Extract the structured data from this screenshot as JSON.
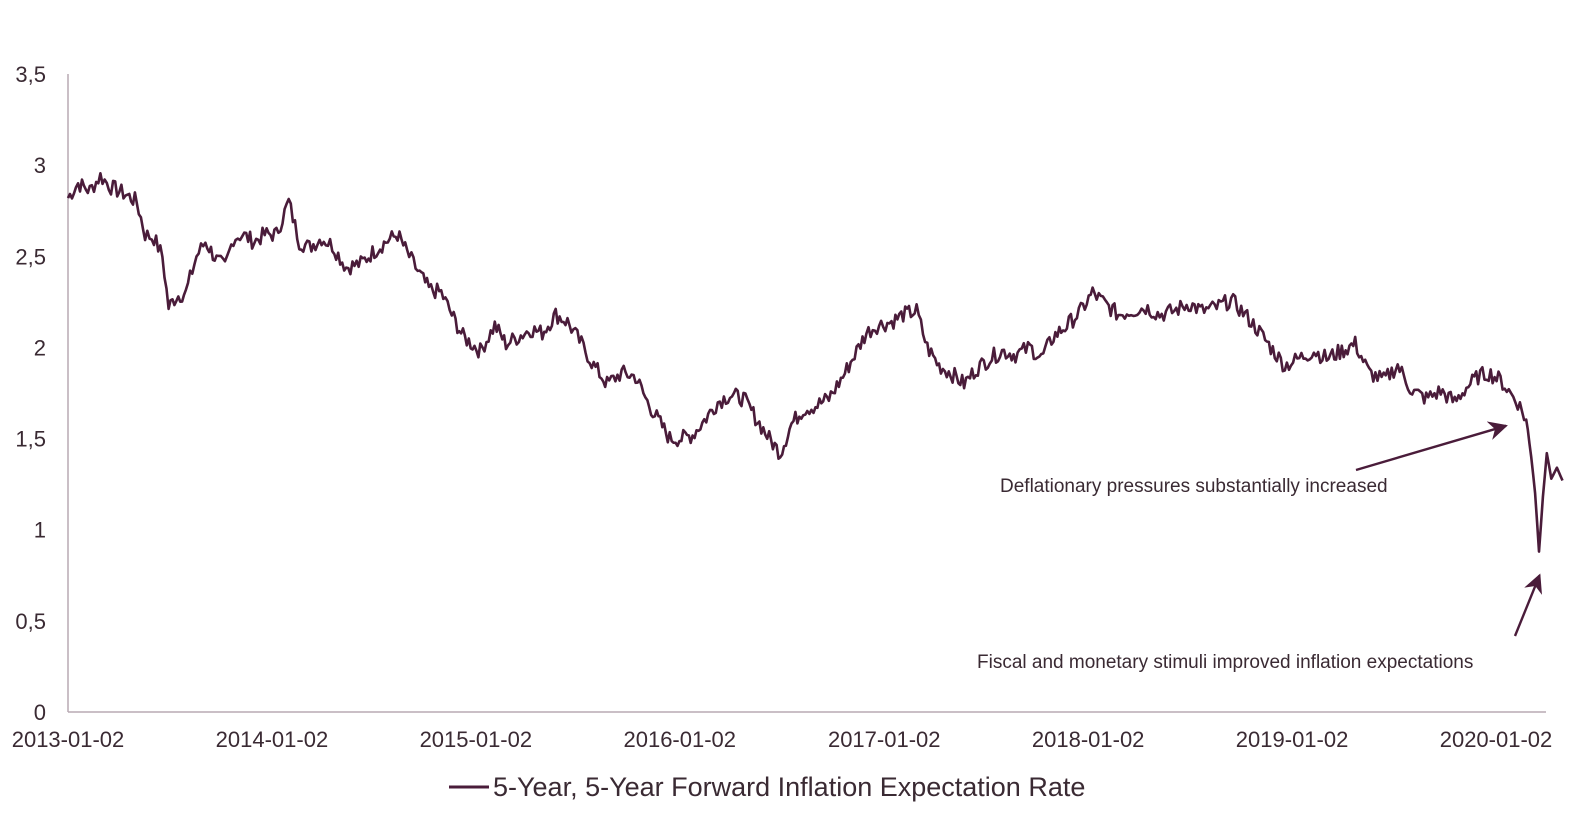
{
  "colors": {
    "series": "#4a1c3a",
    "axis": "#b8aab3",
    "text": "#3a2a33"
  },
  "chart_data": {
    "type": "line",
    "title": "",
    "xlabel": "",
    "ylabel": "",
    "ylim": [
      0,
      3.5
    ],
    "yticks": [
      "0",
      "0,5",
      "1",
      "1,5",
      "2",
      "2,5",
      "3",
      "3,5"
    ],
    "xlim": [
      "2013-01-02",
      "2020-04-30"
    ],
    "xticks": [
      "2013-01-02",
      "2014-01-02",
      "2015-01-02",
      "2016-01-02",
      "2017-01-02",
      "2018-01-02",
      "2019-01-02",
      "2020-01-02"
    ],
    "grid": false,
    "legend": {
      "placement": "bottom-center"
    },
    "series": [
      {
        "name": "5-Year, 5-Year Forward Inflation Expectation Rate",
        "points": [
          [
            "2013-01-02",
            2.82
          ],
          [
            "2013-01-20",
            2.9
          ],
          [
            "2013-02-10",
            2.86
          ],
          [
            "2013-03-01",
            2.94
          ],
          [
            "2013-03-20",
            2.88
          ],
          [
            "2013-04-15",
            2.84
          ],
          [
            "2013-05-05",
            2.8
          ],
          [
            "2013-05-20",
            2.62
          ],
          [
            "2013-06-05",
            2.6
          ],
          [
            "2013-06-20",
            2.5
          ],
          [
            "2013-07-01",
            2.22
          ],
          [
            "2013-07-15",
            2.28
          ],
          [
            "2013-08-01",
            2.3
          ],
          [
            "2013-08-20",
            2.5
          ],
          [
            "2013-09-05",
            2.58
          ],
          [
            "2013-09-25",
            2.48
          ],
          [
            "2013-10-10",
            2.44
          ],
          [
            "2013-10-25",
            2.6
          ],
          [
            "2013-11-10",
            2.62
          ],
          [
            "2013-12-01",
            2.58
          ],
          [
            "2013-12-20",
            2.62
          ],
          [
            "2014-01-10",
            2.62
          ],
          [
            "2014-02-01",
            2.8
          ],
          [
            "2014-02-20",
            2.58
          ],
          [
            "2014-03-10",
            2.55
          ],
          [
            "2014-04-01",
            2.6
          ],
          [
            "2014-04-20",
            2.56
          ],
          [
            "2014-05-15",
            2.44
          ],
          [
            "2014-06-10",
            2.46
          ],
          [
            "2014-07-01",
            2.52
          ],
          [
            "2014-07-25",
            2.58
          ],
          [
            "2014-08-15",
            2.62
          ],
          [
            "2014-09-01",
            2.52
          ],
          [
            "2014-09-20",
            2.42
          ],
          [
            "2014-10-10",
            2.32
          ],
          [
            "2014-11-01",
            2.3
          ],
          [
            "2014-11-20",
            2.18
          ],
          [
            "2014-12-10",
            2.06
          ],
          [
            "2015-01-10",
            1.98
          ],
          [
            "2015-02-05",
            2.12
          ],
          [
            "2015-02-25",
            2.02
          ],
          [
            "2015-03-20",
            2.06
          ],
          [
            "2015-04-10",
            2.1
          ],
          [
            "2015-05-01",
            2.08
          ],
          [
            "2015-05-25",
            2.18
          ],
          [
            "2015-06-15",
            2.14
          ],
          [
            "2015-07-10",
            2.02
          ],
          [
            "2015-08-01",
            1.9
          ],
          [
            "2015-08-25",
            1.8
          ],
          [
            "2015-09-20",
            1.86
          ],
          [
            "2015-10-15",
            1.84
          ],
          [
            "2015-11-05",
            1.7
          ],
          [
            "2015-11-25",
            1.6
          ],
          [
            "2015-12-15",
            1.5
          ],
          [
            "2016-01-05",
            1.5
          ],
          [
            "2016-01-25",
            1.52
          ],
          [
            "2016-02-15",
            1.6
          ],
          [
            "2016-03-10",
            1.7
          ],
          [
            "2016-04-01",
            1.74
          ],
          [
            "2016-04-25",
            1.72
          ],
          [
            "2016-05-20",
            1.6
          ],
          [
            "2016-06-10",
            1.5
          ],
          [
            "2016-06-30",
            1.42
          ],
          [
            "2016-07-20",
            1.58
          ],
          [
            "2016-08-10",
            1.66
          ],
          [
            "2016-09-01",
            1.68
          ],
          [
            "2016-09-25",
            1.72
          ],
          [
            "2016-10-20",
            1.84
          ],
          [
            "2016-11-10",
            1.96
          ],
          [
            "2016-12-01",
            2.08
          ],
          [
            "2016-12-20",
            2.12
          ],
          [
            "2017-01-15",
            2.14
          ],
          [
            "2017-02-05",
            2.18
          ],
          [
            "2017-03-01",
            2.2
          ],
          [
            "2017-03-20",
            2.0
          ],
          [
            "2017-04-10",
            1.9
          ],
          [
            "2017-05-01",
            1.86
          ],
          [
            "2017-05-25",
            1.8
          ],
          [
            "2017-06-15",
            1.88
          ],
          [
            "2017-07-10",
            1.94
          ],
          [
            "2017-08-01",
            1.98
          ],
          [
            "2017-08-25",
            1.96
          ],
          [
            "2017-09-20",
            2.0
          ],
          [
            "2017-10-10",
            1.94
          ],
          [
            "2017-11-01",
            2.06
          ],
          [
            "2017-11-25",
            2.12
          ],
          [
            "2017-12-20",
            2.2
          ],
          [
            "2018-01-10",
            2.3
          ],
          [
            "2018-02-01",
            2.24
          ],
          [
            "2018-02-25",
            2.18
          ],
          [
            "2018-03-20",
            2.2
          ],
          [
            "2018-04-15",
            2.22
          ],
          [
            "2018-05-10",
            2.18
          ],
          [
            "2018-06-05",
            2.2
          ],
          [
            "2018-07-01",
            2.24
          ],
          [
            "2018-07-25",
            2.2
          ],
          [
            "2018-08-20",
            2.22
          ],
          [
            "2018-09-15",
            2.26
          ],
          [
            "2018-10-10",
            2.18
          ],
          [
            "2018-11-01",
            2.1
          ],
          [
            "2018-11-25",
            2.0
          ],
          [
            "2018-12-20",
            1.9
          ],
          [
            "2019-01-15",
            1.94
          ],
          [
            "2019-02-10",
            1.98
          ],
          [
            "2019-03-05",
            1.94
          ],
          [
            "2019-04-01",
            1.98
          ],
          [
            "2019-04-25",
            2.02
          ],
          [
            "2019-05-20",
            1.86
          ],
          [
            "2019-06-15",
            1.82
          ],
          [
            "2019-07-10",
            1.9
          ],
          [
            "2019-08-05",
            1.76
          ],
          [
            "2019-08-30",
            1.72
          ],
          [
            "2019-09-25",
            1.76
          ],
          [
            "2019-10-20",
            1.7
          ],
          [
            "2019-11-10",
            1.78
          ],
          [
            "2019-12-01",
            1.84
          ],
          [
            "2019-12-20",
            1.86
          ],
          [
            "2020-01-10",
            1.82
          ],
          [
            "2020-01-25",
            1.76
          ],
          [
            "2020-02-10",
            1.7
          ],
          [
            "2020-02-25",
            1.6
          ],
          [
            "2020-03-05",
            1.4
          ],
          [
            "2020-03-12",
            1.2
          ],
          [
            "2020-03-19",
            0.88
          ],
          [
            "2020-03-26",
            1.18
          ],
          [
            "2020-04-02",
            1.42
          ],
          [
            "2020-04-10",
            1.28
          ],
          [
            "2020-04-20",
            1.34
          ],
          [
            "2020-04-30",
            1.27
          ]
        ]
      }
    ],
    "annotations": [
      {
        "text": "Deflationary pressures substantially increased",
        "arrow_to": [
          "2020-01-20",
          1.57
        ]
      },
      {
        "text": "Fiscal and monetary stimuli improved inflation expectations",
        "arrow_to": [
          "2020-03-20",
          0.75
        ]
      }
    ]
  }
}
